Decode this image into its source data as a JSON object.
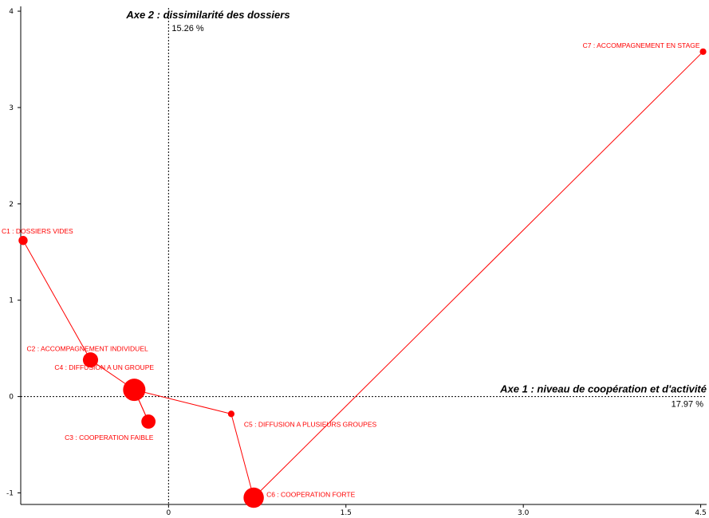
{
  "chart_data": {
    "type": "scatter",
    "title": "",
    "axis1": {
      "title": "Axe 1 : niveau de coopération et d'activité",
      "percent": "17.97 %"
    },
    "axis2": {
      "title": "Axe 2 : dissimilarité des dossiers",
      "percent": "15.26 %"
    },
    "xlim": [
      -1.25,
      4.55
    ],
    "ylim": [
      -1.12,
      4.05
    ],
    "x_ticks": [
      {
        "value": 0,
        "label": "0"
      },
      {
        "value": 1.5,
        "label": "1.5"
      },
      {
        "value": 3.0,
        "label": "3.0"
      },
      {
        "value": 4.5,
        "label": "4.5"
      }
    ],
    "y_ticks": [
      {
        "value": -1,
        "label": "-1"
      },
      {
        "value": 0,
        "label": "0"
      },
      {
        "value": 1,
        "label": "1"
      },
      {
        "value": 2,
        "label": "2"
      },
      {
        "value": 3,
        "label": "3"
      },
      {
        "value": 4,
        "label": "4"
      }
    ],
    "color": "#ff0000",
    "points": [
      {
        "label": "C1 : DOSSIERS VIDES",
        "x": -1.23,
        "y": 1.62,
        "weight": 1.0
      },
      {
        "label": "C2 : ACCOMPAGNEMENT INDIVIDUEL",
        "x": -0.66,
        "y": 0.38,
        "weight": 2.2
      },
      {
        "label": "C4 : DIFFUSION A UN GROUPE",
        "x": -0.29,
        "y": 0.07,
        "weight": 3.6
      },
      {
        "label": "C3 : COOPERATION FAIBLE",
        "x": -0.17,
        "y": -0.26,
        "weight": 2.0
      },
      {
        "label": "C5 : DIFFUSION A PLUSIEURS GROUPES",
        "x": 0.53,
        "y": -0.18,
        "weight": 0.5
      },
      {
        "label": "C6 : COOPERATION FORTE",
        "x": 0.72,
        "y": -1.05,
        "weight": 3.2
      },
      {
        "label": "C7 : ACCOMPAGNEMENT EN STAGE",
        "x": 4.52,
        "y": 3.58,
        "weight": 0.5
      }
    ],
    "path": [
      "C1 : DOSSIERS VIDES",
      "C2 : ACCOMPAGNEMENT INDIVIDUEL",
      "C4 : DIFFUSION A UN GROUPE",
      "C3 : COOPERATION FAIBLE",
      "C4 : DIFFUSION A UN GROUPE",
      "C5 : DIFFUSION A PLUSIEURS GROUPES",
      "C6 : COOPERATION FORTE",
      "C7 : ACCOMPAGNEMENT EN STAGE"
    ],
    "grid": false
  }
}
